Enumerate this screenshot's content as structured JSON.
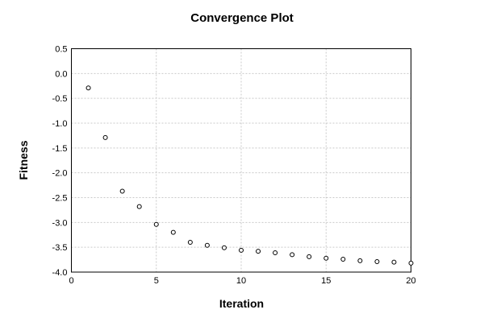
{
  "title": "Convergence Plot",
  "chart_data": {
    "type": "scatter",
    "title": "Convergence Plot",
    "xlabel": "Iteration",
    "ylabel": "Fitness",
    "x": [
      1,
      2,
      3,
      4,
      5,
      6,
      7,
      8,
      9,
      10,
      11,
      12,
      13,
      14,
      15,
      16,
      17,
      18,
      19,
      20
    ],
    "y": [
      -0.29,
      -1.29,
      -2.37,
      -2.68,
      -3.04,
      -3.2,
      -3.4,
      -3.46,
      -3.51,
      -3.56,
      -3.58,
      -3.61,
      -3.65,
      -3.69,
      -3.72,
      -3.74,
      -3.77,
      -3.79,
      -3.8,
      -3.82
    ],
    "xlim": [
      0,
      20
    ],
    "ylim": [
      -4.0,
      0.5
    ],
    "x_ticks": [
      0,
      5,
      10,
      15,
      20
    ],
    "y_ticks": [
      0.5,
      0.0,
      -0.5,
      -1.0,
      -1.5,
      -2.0,
      -2.5,
      -3.0,
      -3.5,
      -4.0
    ],
    "grid": true,
    "legend": null,
    "marker": "open-circle",
    "colors": {
      "background": "#ffffff",
      "axis": "#000000",
      "grid": "#c9c9c9",
      "marker_stroke": "#000000",
      "marker_fill": "#ffffff",
      "text": "#000000"
    }
  }
}
